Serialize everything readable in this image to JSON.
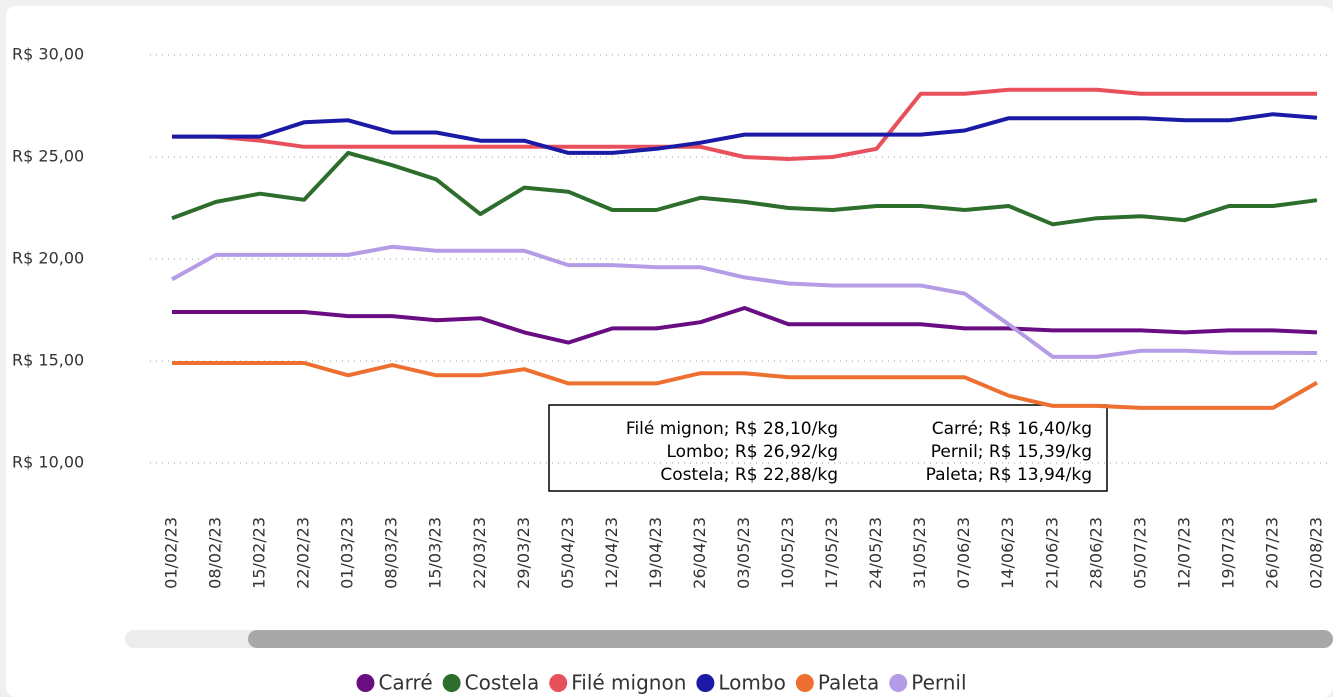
{
  "chart_data": {
    "type": "line",
    "categories": [
      "01/02/23",
      "08/02/23",
      "15/02/23",
      "22/02/23",
      "01/03/23",
      "08/03/23",
      "15/03/23",
      "22/03/23",
      "29/03/23",
      "05/04/23",
      "12/04/23",
      "19/04/23",
      "26/04/23",
      "03/05/23",
      "10/05/23",
      "17/05/23",
      "24/05/23",
      "31/05/23",
      "07/06/23",
      "14/06/23",
      "21/06/23",
      "28/06/23",
      "05/07/23",
      "12/07/23",
      "19/07/23",
      "26/07/23",
      "02/08/23"
    ],
    "series": [
      {
        "name": "Carré",
        "color": "#6a0d83",
        "values": [
          17.4,
          17.4,
          17.4,
          17.4,
          17.2,
          17.2,
          17.0,
          17.1,
          16.4,
          15.9,
          16.6,
          16.6,
          16.9,
          17.6,
          16.8,
          16.8,
          16.8,
          16.8,
          16.6,
          16.6,
          16.5,
          16.5,
          16.5,
          16.4,
          16.5,
          16.5,
          16.4
        ]
      },
      {
        "name": "Costela",
        "color": "#2d6e2d",
        "values": [
          22.0,
          22.8,
          23.2,
          22.9,
          25.2,
          24.6,
          23.9,
          22.2,
          23.5,
          23.3,
          22.4,
          22.4,
          23.0,
          22.8,
          22.5,
          22.4,
          22.6,
          22.6,
          22.4,
          22.6,
          21.7,
          22.0,
          22.1,
          21.9,
          22.6,
          22.6,
          22.88
        ]
      },
      {
        "name": "Filé mignon",
        "color": "#e8515b",
        "values": [
          26.0,
          26.0,
          25.8,
          25.5,
          25.5,
          25.5,
          25.5,
          25.5,
          25.5,
          25.5,
          25.5,
          25.5,
          25.5,
          25.0,
          24.9,
          25.0,
          25.4,
          28.1,
          28.1,
          28.3,
          28.3,
          28.3,
          28.1,
          28.1,
          28.1,
          28.1,
          28.1
        ]
      },
      {
        "name": "Lombo",
        "color": "#1a1aa6",
        "values": [
          26.0,
          26.0,
          26.0,
          26.7,
          26.8,
          26.2,
          26.2,
          25.8,
          25.8,
          25.2,
          25.2,
          25.4,
          25.7,
          26.1,
          26.1,
          26.1,
          26.1,
          26.1,
          26.3,
          26.9,
          26.9,
          26.9,
          26.9,
          26.8,
          26.8,
          27.1,
          26.92
        ]
      },
      {
        "name": "Paleta",
        "color": "#ed7031",
        "values": [
          14.9,
          14.9,
          14.9,
          14.9,
          14.3,
          14.8,
          14.3,
          14.3,
          14.6,
          13.9,
          13.9,
          13.9,
          14.4,
          14.4,
          14.2,
          14.2,
          14.2,
          14.2,
          14.2,
          13.3,
          12.8,
          12.8,
          12.7,
          12.7,
          12.7,
          12.7,
          13.94
        ]
      },
      {
        "name": "Pernil",
        "color": "#b59ce6",
        "values": [
          19.0,
          20.2,
          20.2,
          20.2,
          20.2,
          20.6,
          20.4,
          20.4,
          20.4,
          19.7,
          19.7,
          19.6,
          19.6,
          19.1,
          18.8,
          18.7,
          18.7,
          18.7,
          18.3,
          16.8,
          15.2,
          15.2,
          15.5,
          15.5,
          15.4,
          15.4,
          15.39
        ]
      }
    ],
    "ylim": [
      8,
      31
    ],
    "yticks": [
      {
        "value": 10,
        "label": "R$ 10,00"
      },
      {
        "value": 15,
        "label": "R$ 15,00"
      },
      {
        "value": 20,
        "label": "R$ 20,00"
      },
      {
        "value": 25,
        "label": "R$ 25,00"
      },
      {
        "value": 30,
        "label": "R$ 30,00"
      }
    ],
    "grid": true,
    "legend": "bottom",
    "annotations": [
      "Filé mignon; R$ 28,10/kg",
      "Lombo; R$ 26,92/kg",
      "Costela; R$ 22,88/kg",
      "Carré; R$ 16,40/kg",
      "Pernil; R$ 15,39/kg",
      "Paleta; R$ 13,94/kg"
    ]
  }
}
